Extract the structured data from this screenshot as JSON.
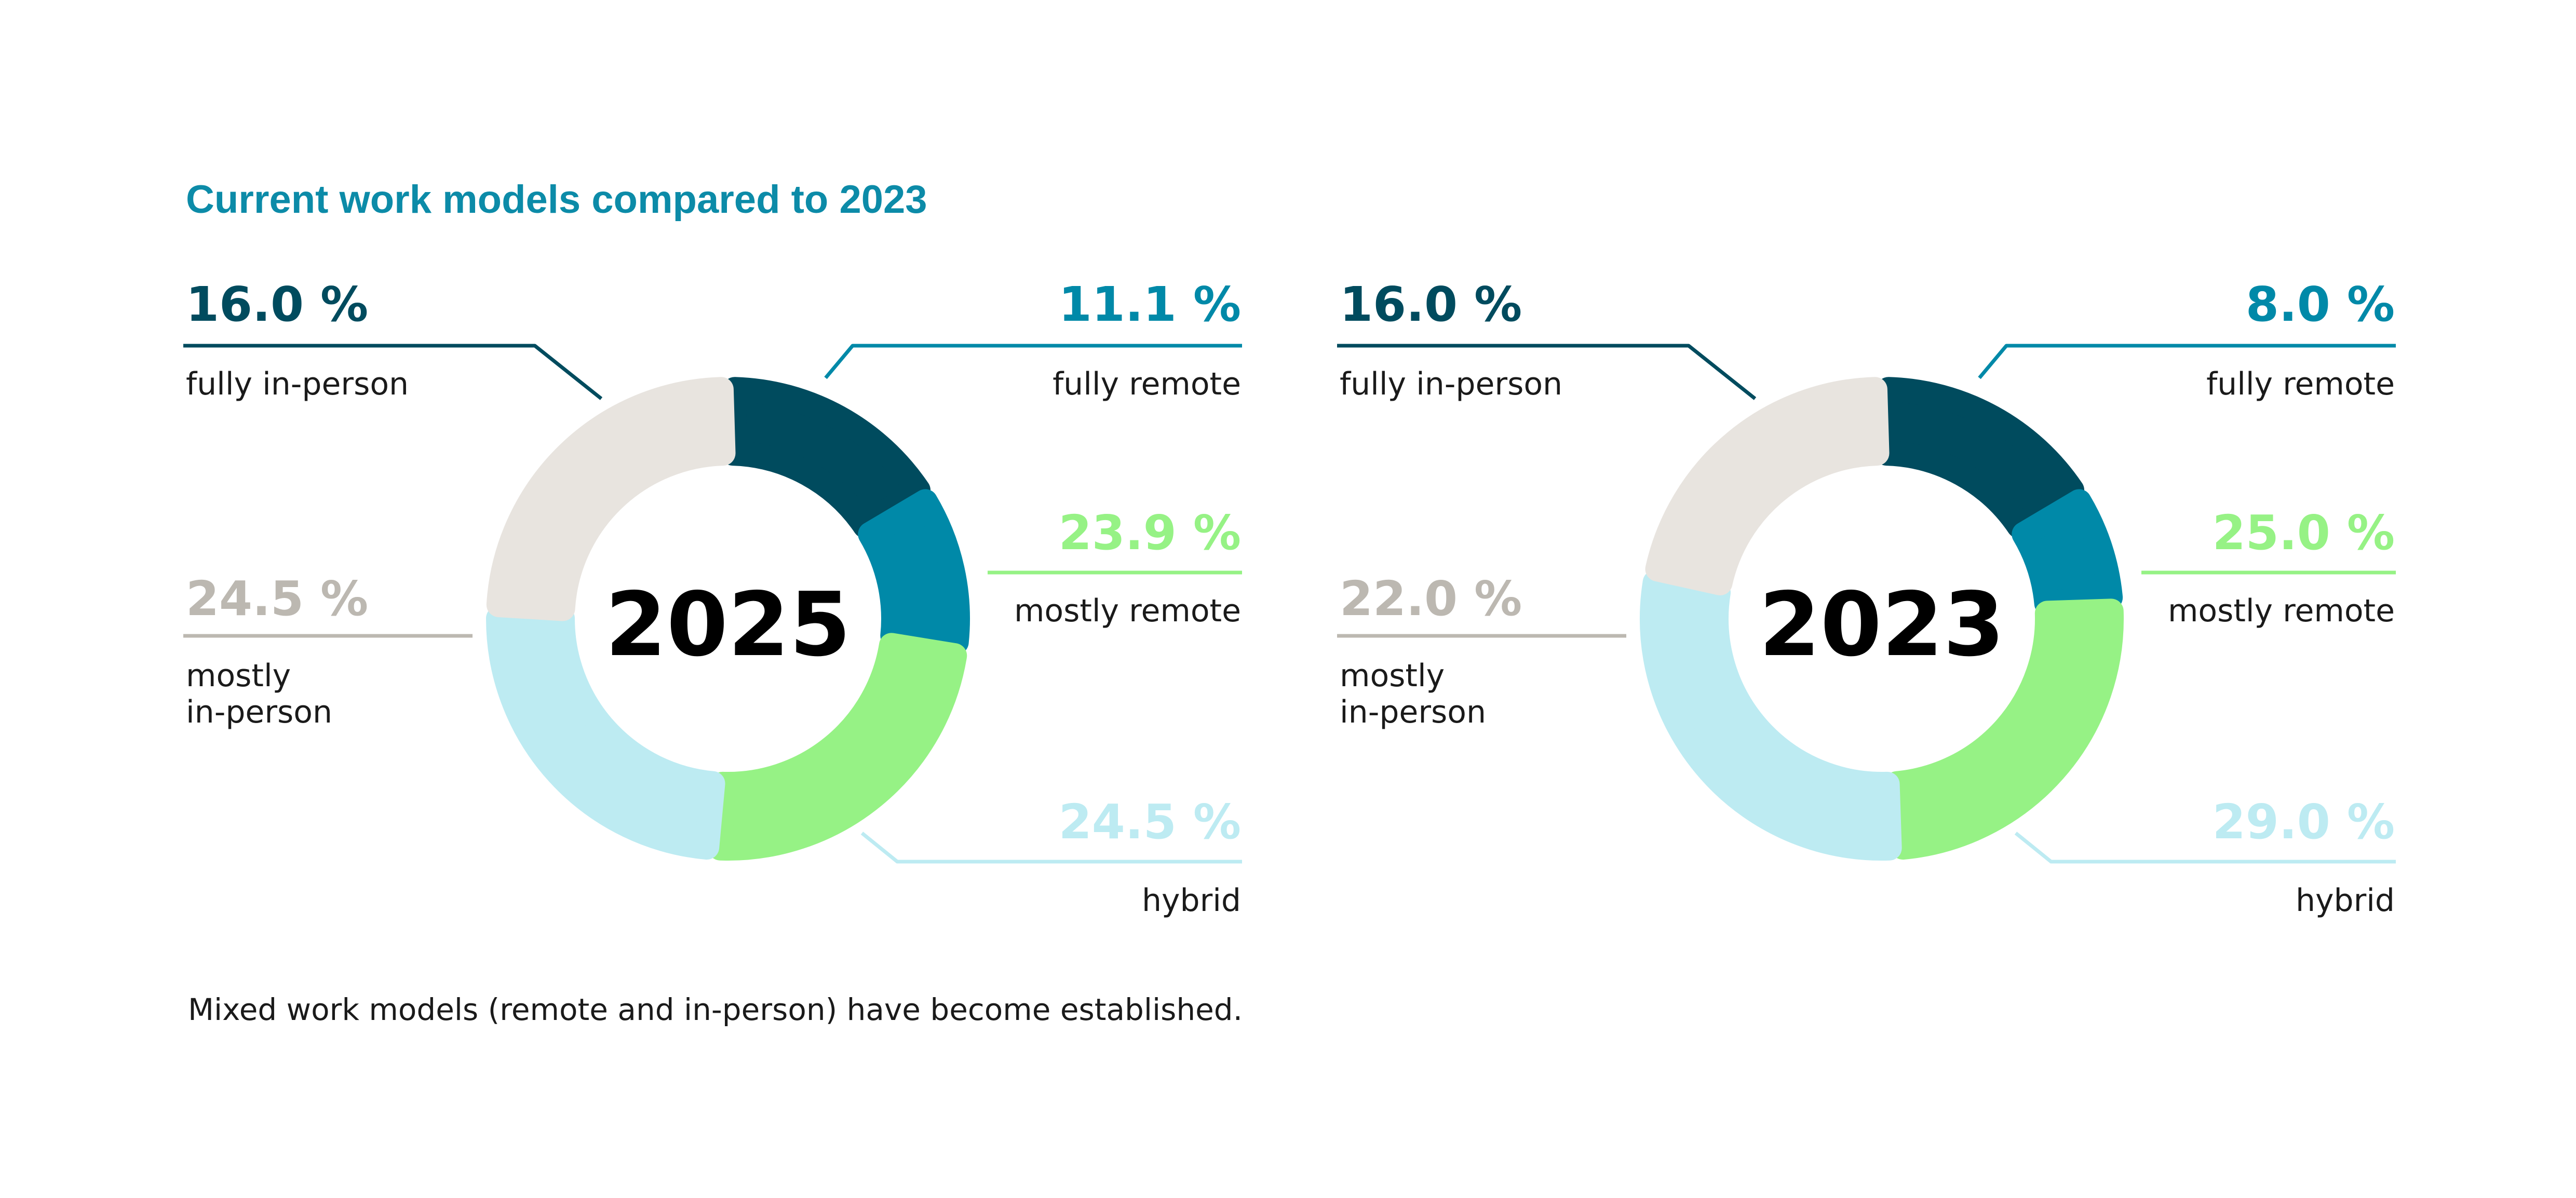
{
  "title": "Current work models compared to 2023",
  "footnote": "Mixed work models (remote and in-person) have become established.",
  "colors": {
    "title": "#0C8BA8",
    "text": "#1A1A1A",
    "center": "#000000",
    "fully_in_person": "#004B5E",
    "fully_remote": "#0089A8",
    "mostly_remote": "#96F285",
    "hybrid": "#BDEBF2",
    "mostly_in_person": "#E8E4DF",
    "mostly_in_person_label": "#BCB8B1"
  },
  "chart_data": [
    {
      "type": "pie",
      "center_label": "2025",
      "categories": [
        "fully in-person",
        "fully remote",
        "mostly remote",
        "hybrid",
        "mostly in-person"
      ],
      "values": [
        16.0,
        11.1,
        23.9,
        24.5,
        24.5
      ],
      "value_labels": [
        "16.0 %",
        "11.1 %",
        "23.9 %",
        "24.5 %",
        "24.5 %"
      ]
    },
    {
      "type": "pie",
      "center_label": "2023",
      "categories": [
        "fully in-person",
        "fully remote",
        "mostly remote",
        "hybrid",
        "mostly in-person"
      ],
      "values": [
        16.0,
        8.0,
        25.0,
        29.0,
        22.0
      ],
      "value_labels": [
        "16.0 %",
        "8.0 %",
        "25.0 %",
        "29.0 %",
        "22.0 %"
      ]
    }
  ]
}
